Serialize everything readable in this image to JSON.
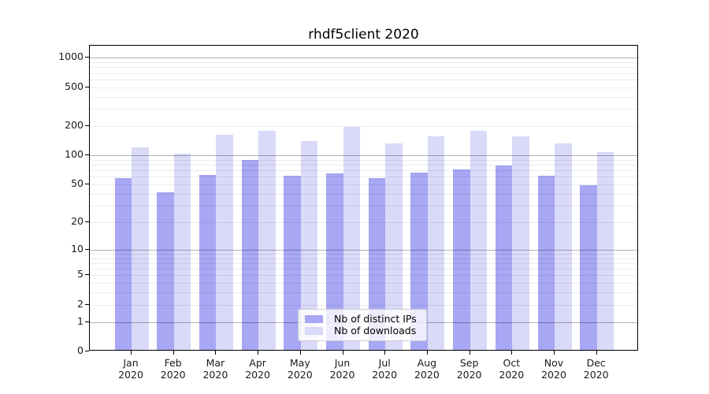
{
  "title": "rhdf5client 2020",
  "chart_data": {
    "type": "bar",
    "title": "rhdf5client 2020",
    "categories": [
      "Jan",
      "Feb",
      "Mar",
      "Apr",
      "May",
      "Jun",
      "Jul",
      "Aug",
      "Sep",
      "Oct",
      "Nov",
      "Dec"
    ],
    "x_tick_year": "2020",
    "series": [
      {
        "name": "Nb of distinct IPs",
        "color": "#a7a7f4",
        "values": [
          56,
          40,
          60,
          86,
          59,
          63,
          56,
          64,
          69,
          76,
          59,
          47
        ]
      },
      {
        "name": "Nb of downloads",
        "color": "#d9d9f8",
        "values": [
          116,
          101,
          156,
          173,
          135,
          190,
          127,
          151,
          173,
          151,
          127,
          105
        ]
      }
    ],
    "yscale": "log10(1+value)",
    "y_ticks": [
      0,
      1,
      2,
      5,
      10,
      20,
      50,
      100,
      200,
      500,
      1000
    ],
    "y_major_gridlines": [
      1,
      10,
      100,
      1000
    ],
    "ylim": [
      0,
      1240
    ],
    "xlabel": "",
    "ylabel": "",
    "grid": "horizontal",
    "legend_position": "bottom-center-inside",
    "bar_orientation": "vertical-grouped-pairs"
  },
  "colors": {
    "background": "#ffffff",
    "axis": "#000000",
    "major_grid": "#b3b3b3",
    "minor_grid": "#ececec",
    "series_dark": "#a7a7f4",
    "series_light": "#d9d9f8"
  }
}
